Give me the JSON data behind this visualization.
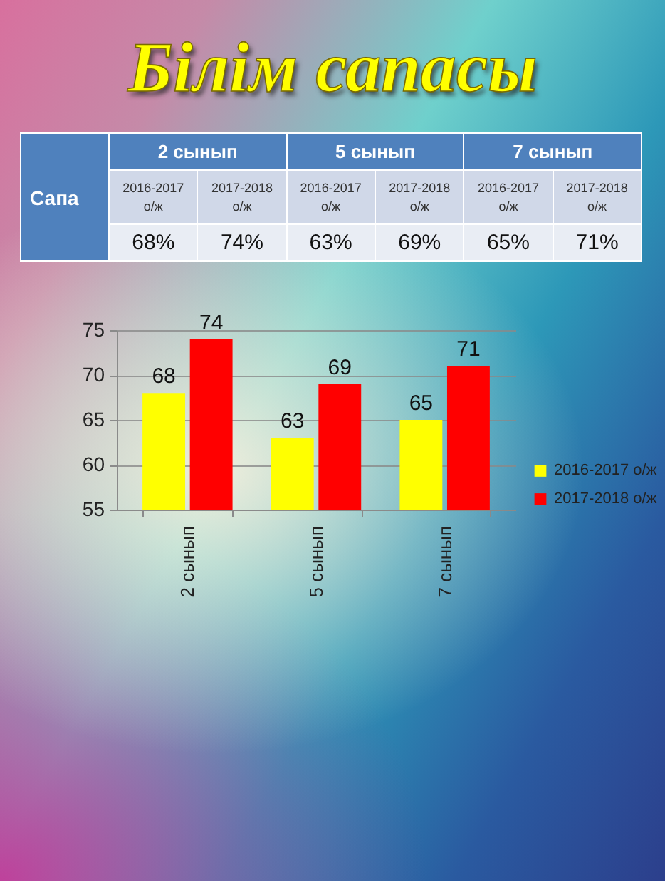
{
  "chart_data": [
    {
      "type": "other",
      "title": "Білім сапасы",
      "ylabel": "Сапа",
      "categories": [
        "2 сынып",
        "5 сынып",
        "7 сынып"
      ],
      "series": [
        {
          "name": "2016-2017 о/ж",
          "values": [
            68,
            63,
            65
          ],
          "value_labels": [
            "68%",
            "63%",
            "65%"
          ]
        },
        {
          "name": "2017-2018 о/ж",
          "values": [
            74,
            69,
            71
          ],
          "value_labels": [
            "74%",
            "69%",
            "71%"
          ]
        }
      ]
    },
    {
      "type": "bar",
      "categories": [
        "2 сынып",
        "5 сынып",
        "7 сынып"
      ],
      "series": [
        {
          "name": "2016-2017 о/ж",
          "color": "#ffff00",
          "values": [
            68,
            63,
            65
          ]
        },
        {
          "name": "2017-2018 о/ж",
          "color": "#ff0000",
          "values": [
            74,
            69,
            71
          ]
        }
      ],
      "ylim": [
        55,
        75
      ],
      "yticks": [
        55,
        60,
        65,
        70,
        75
      ],
      "grid": "y",
      "legend": "right",
      "data_labels": true
    }
  ]
}
